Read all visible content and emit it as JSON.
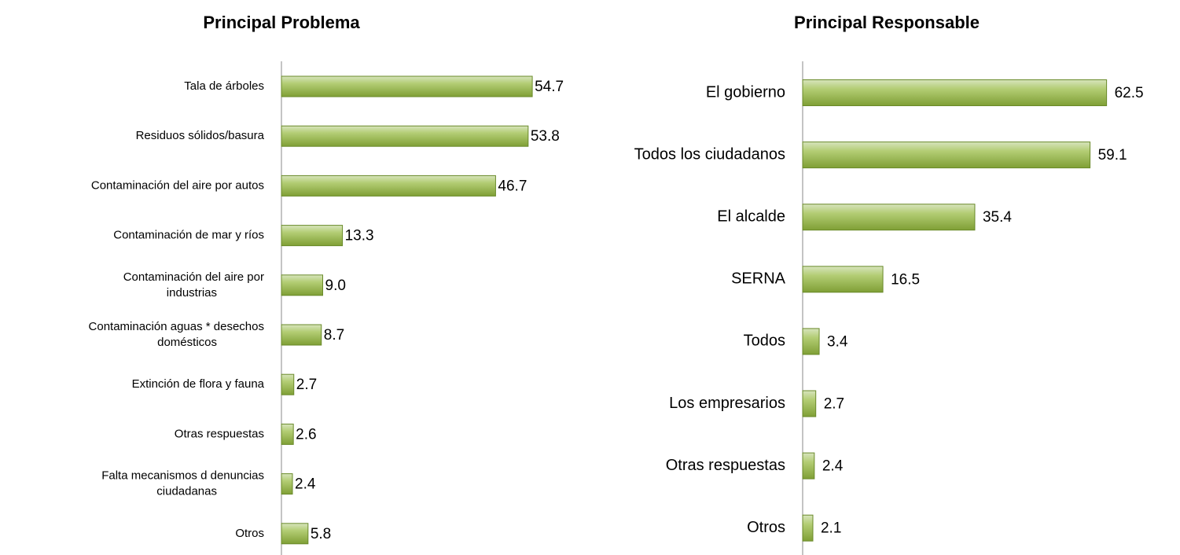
{
  "chart_data": [
    {
      "type": "barh",
      "title": "Principal Problema",
      "categories": [
        "Tala de árboles",
        "Residuos sólidos/basura",
        "Contaminación del aire por autos",
        "Contaminación de mar y ríos",
        "Contaminación del aire por industrias",
        "Contaminación aguas * desechos domésticos",
        "Extinción de flora y fauna",
        "Otras respuestas",
        "Falta mecanismos d denuncias ciudadanas",
        "Otros"
      ],
      "values": [
        54.7,
        53.8,
        46.7,
        13.3,
        9.0,
        8.7,
        2.7,
        2.6,
        2.4,
        5.8
      ],
      "value_labels": [
        "54.7",
        "53.8",
        "46.7",
        "13.3",
        "9.0",
        "8.7",
        "2.7",
        "2.6",
        "2.4",
        "5.8"
      ],
      "color": "#9bbb59",
      "xlim": [
        0,
        60
      ]
    },
    {
      "type": "barh",
      "title": "Principal Responsable",
      "categories": [
        "El gobierno",
        "Todos los ciudadanos",
        "El alcalde",
        "SERNA",
        "Todos",
        "Los empresarios",
        "Otras respuestas",
        "Otros"
      ],
      "values": [
        62.5,
        59.1,
        35.4,
        16.5,
        3.4,
        2.7,
        2.4,
        2.1
      ],
      "color": "#9bbb59",
      "xlim": [
        0,
        70
      ]
    }
  ]
}
